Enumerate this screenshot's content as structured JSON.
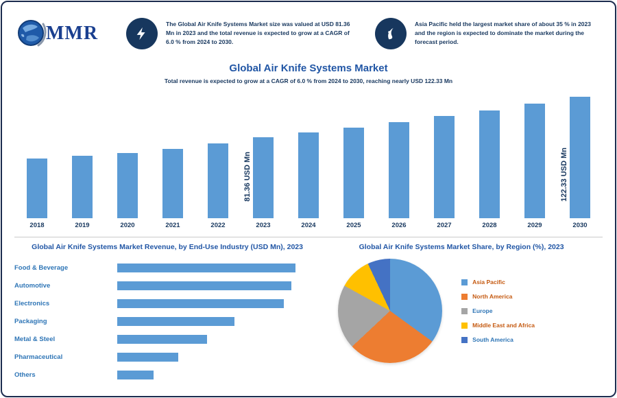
{
  "colors": {
    "accent_blue": "#2156A5",
    "dark_navy": "#17375E",
    "bar_blue": "#5B9BD5",
    "label_blue": "#2E75B6",
    "logo_blue": "#1a3f8f"
  },
  "header": {
    "logo": {
      "text": "MMR"
    },
    "highlights": [
      {
        "icon": "lightning-icon",
        "text": "The Global Air Knife Systems Market size was valued at USD 81.36 Mn in 2023 and the total revenue is expected to grow at a CAGR of 6.0 % from 2024 to 2030."
      },
      {
        "icon": "flame-icon",
        "text": "Asia Pacific held the largest market share of about 35 % in 2023 and the region is expected to dominate the market during the forecast period."
      }
    ]
  },
  "title": {
    "text": "Global Air Knife Systems Market",
    "subtitle": "Total revenue is expected to grow at a CAGR of 6.0 % from 2024 to 2030, reaching nearly USD 122.33 Mn"
  },
  "chart_data": [
    {
      "type": "bar",
      "title": "Global Air Knife Systems Market Revenue (USD Mn)",
      "categories": [
        "2018",
        "2019",
        "2020",
        "2021",
        "2022",
        "2023",
        "2024",
        "2025",
        "2026",
        "2027",
        "2028",
        "2029",
        "2030"
      ],
      "values": [
        60.1,
        63.2,
        65.4,
        69.8,
        75.3,
        81.36,
        86.2,
        91.4,
        96.9,
        102.7,
        108.9,
        115.4,
        122.33
      ],
      "unit": "USD Mn",
      "bar_color": "#5B9BD5",
      "ylim": [
        0,
        130
      ],
      "grid": false,
      "annotations": [
        {
          "index": 5,
          "label": "81.36 USD Mn"
        },
        {
          "index": 12,
          "label": "122.33 USD Mn"
        }
      ]
    },
    {
      "type": "bar",
      "orientation": "horizontal",
      "title": "Global Air Knife Systems Market Revenue, by End-Use Industry (USD Mn), 2023",
      "categories": [
        "Food & Beverage",
        "Automotive",
        "Electronics",
        "Packaging",
        "Metal & Steel",
        "Pharmaceutical",
        "Others"
      ],
      "values": [
        17.6,
        17.2,
        16.5,
        11.6,
        8.9,
        6.0,
        3.6
      ],
      "unit": "USD Mn",
      "bar_color": "#5B9BD5",
      "xlim": [
        0,
        20
      ],
      "grid": false
    },
    {
      "type": "pie",
      "title": "Global Air Knife Systems Market Share, by Region (%), 2023",
      "labels": [
        "Asia Pacific",
        "North America",
        "Europe",
        "Middle East and Africa",
        "South America"
      ],
      "values": [
        35,
        28,
        20,
        10,
        7
      ],
      "colors": [
        "#5B9BD5",
        "#ED7D31",
        "#A5A5A5",
        "#FFC000",
        "#4472C4"
      ],
      "label_colors": [
        "#C55A11",
        "#C55A11",
        "#2E75B6",
        "#C55A11",
        "#2E75B6"
      ],
      "legend_position": "right"
    }
  ]
}
